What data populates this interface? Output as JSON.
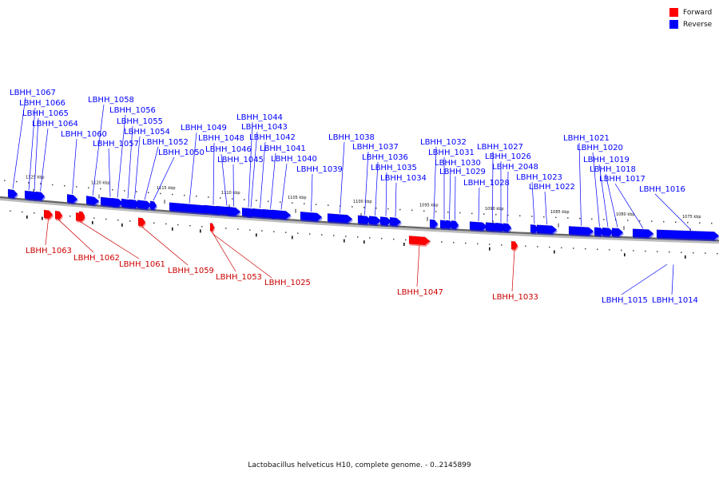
{
  "colors": {
    "forward": "#ff0000",
    "reverse": "#0000ff",
    "backbone": "#666666"
  },
  "legend": [
    {
      "label": "Forward",
      "color": "#ff0000"
    },
    {
      "label": "Reverse",
      "color": "#0000ff"
    }
  ],
  "caption": "Lactobacillus helveticus H10, complete genome. - 0..2145899",
  "scale_ticks": [
    "1125 kbp",
    "1120 kbp",
    "1115 kbp",
    "1110 kbp",
    "1105 kbp",
    "1100 kbp",
    "1095 kbp",
    "1090 kbp",
    "1085 kbp",
    "1080 kbp",
    "1075 kbp"
  ],
  "reverse_genes": [
    "LBHH_1067",
    "LBHH_1066",
    "LBHH_1065",
    "LBHH_1064",
    "LBHH_1060",
    "LBHH_1058",
    "LBHH_1057",
    "LBHH_1056",
    "LBHH_1055",
    "LBHH_1054",
    "LBHH_1052",
    "LBHH_1050",
    "LBHH_1049",
    "LBHH_1048",
    "LBHH_1046",
    "LBHH_1045",
    "LBHH_1044",
    "LBHH_1043",
    "LBHH_1042",
    "LBHH_1041",
    "LBHH_1040",
    "LBHH_1039",
    "LBHH_1038",
    "LBHH_1037",
    "LBHH_1036",
    "LBHH_1035",
    "LBHH_1034",
    "LBHH_1032",
    "LBHH_1031",
    "LBHH_1030",
    "LBHH_1029",
    "LBHH_1028",
    "LBHH_1027",
    "LBHH_1026",
    "LBHH_2048",
    "LBHH_1023",
    "LBHH_1022",
    "LBHH_1021",
    "LBHH_1020",
    "LBHH_1019",
    "LBHH_1018",
    "LBHH_1017",
    "LBHH_1016",
    "LBHH_1015",
    "LBHH_1014"
  ],
  "forward_genes": [
    "LBHH_1063",
    "LBHH_1062",
    "LBHH_1061",
    "LBHH_1059",
    "LBHH_1053",
    "LBHH_1047",
    "LBHH_1033",
    "LBHH_1025"
  ]
}
